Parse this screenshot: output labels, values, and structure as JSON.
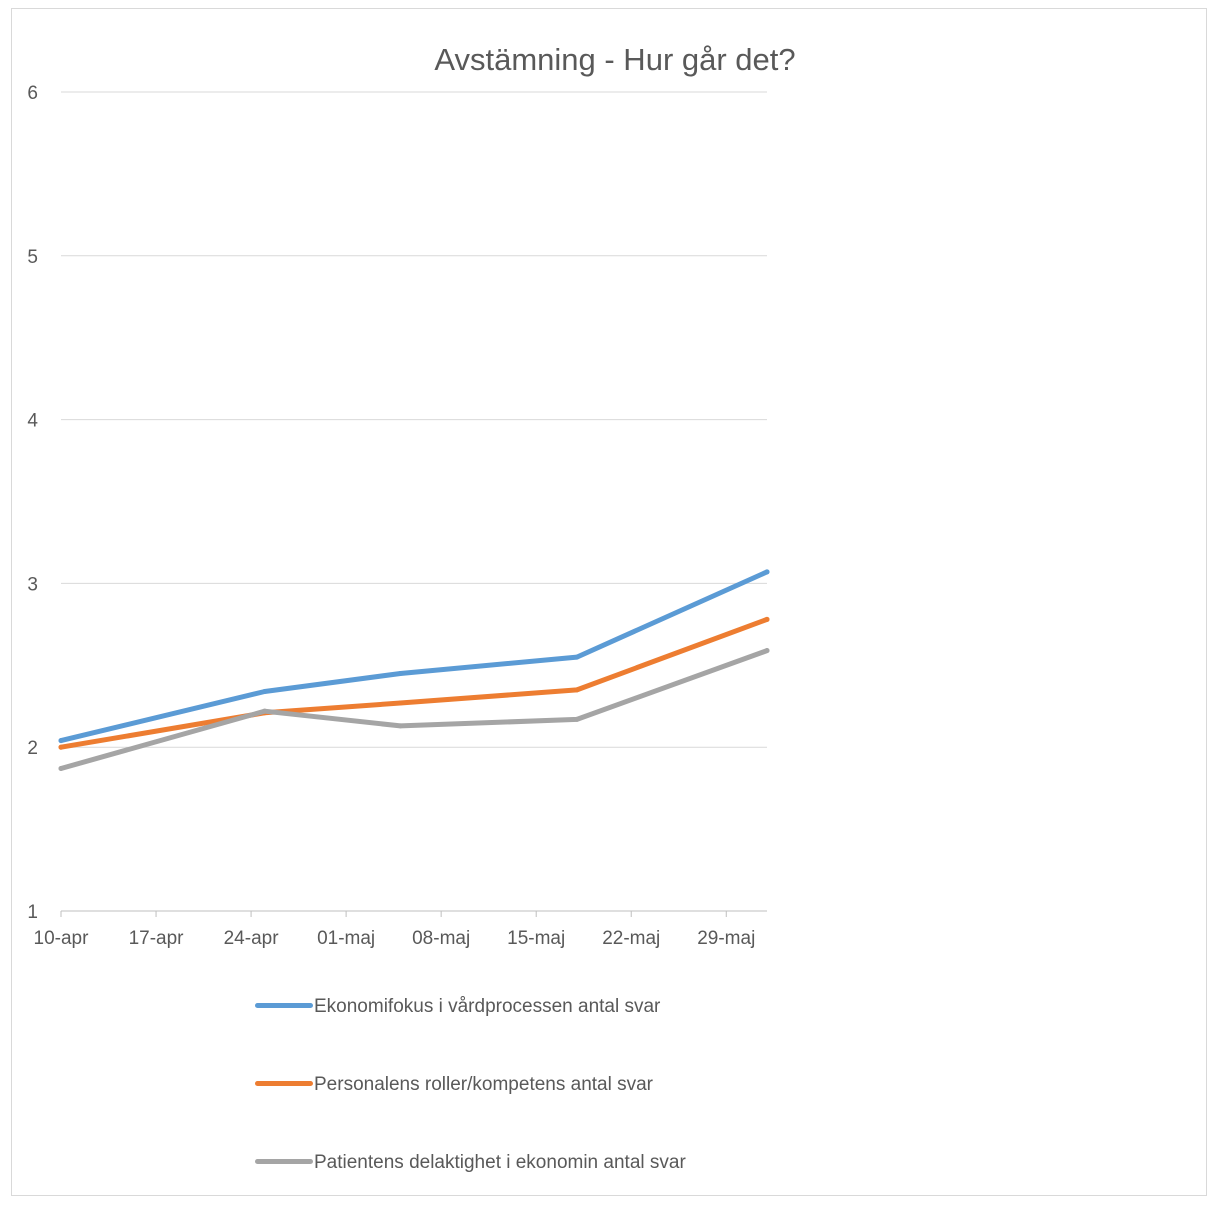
{
  "chart_data": {
    "type": "line",
    "title": "Avstämning - Hur går det?",
    "xlabel": "",
    "ylabel": "",
    "x_ticks": [
      "10-apr",
      "17-apr",
      "24-apr",
      "01-maj",
      "08-maj",
      "15-maj",
      "22-maj",
      "29-maj"
    ],
    "x_domain": [
      "2016-04-10",
      "2016-06-01"
    ],
    "ylim": [
      1,
      6
    ],
    "y_ticks": [
      1,
      2,
      3,
      4,
      5,
      6
    ],
    "grid": true,
    "legend_position": "bottom",
    "series": [
      {
        "name": "Ekonomifokus i vårdprocessen antal svar",
        "color": "#5b9bd5",
        "points": [
          {
            "x": "2016-04-10",
            "y": 2.04
          },
          {
            "x": "2016-04-25",
            "y": 2.34
          },
          {
            "x": "2016-05-05",
            "y": 2.45
          },
          {
            "x": "2016-05-18",
            "y": 2.55
          },
          {
            "x": "2016-06-01",
            "y": 3.07
          }
        ]
      },
      {
        "name": "Personalens roller/kompetens antal svar",
        "color": "#ed7d31",
        "points": [
          {
            "x": "2016-04-10",
            "y": 2.0
          },
          {
            "x": "2016-04-25",
            "y": 2.21
          },
          {
            "x": "2016-05-05",
            "y": 2.27
          },
          {
            "x": "2016-05-18",
            "y": 2.35
          },
          {
            "x": "2016-06-01",
            "y": 2.78
          }
        ]
      },
      {
        "name": "Patientens delaktighet i ekonomin antal svar",
        "color": "#a5a5a5",
        "points": [
          {
            "x": "2016-04-10",
            "y": 1.87
          },
          {
            "x": "2016-04-25",
            "y": 2.22
          },
          {
            "x": "2016-05-05",
            "y": 2.13
          },
          {
            "x": "2016-05-18",
            "y": 2.17
          },
          {
            "x": "2016-06-01",
            "y": 2.59
          }
        ]
      }
    ],
    "colors": {
      "text": "#595959",
      "gridline": "#d9d9d9",
      "axis": "#bfbfbf"
    }
  }
}
